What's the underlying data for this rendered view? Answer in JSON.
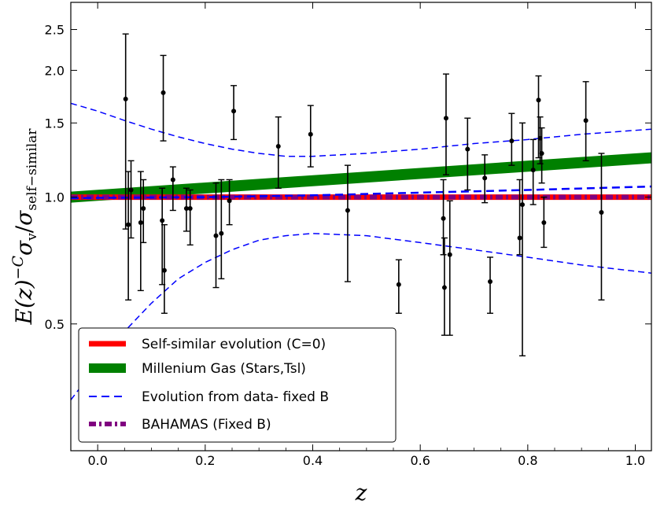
{
  "chart_data": {
    "type": "scatter",
    "title": "",
    "xlabel": "z",
    "ylabel": "E(z)^{-C} σ_v / σ_self-similar",
    "ylabel_parts": {
      "main": "E(z)",
      "exponent": "−C",
      "sigma1": "σ",
      "sub1": "v",
      "slash": "/",
      "sigma2": "σ",
      "sub2": "self−similar"
    },
    "xlim": [
      -0.05,
      1.03
    ],
    "ylim": [
      0.25,
      2.9
    ],
    "yscale": "log",
    "xticks": [
      0.0,
      0.2,
      0.4,
      0.6,
      0.8,
      1.0
    ],
    "xtick_labels": [
      "0.0",
      "0.2",
      "0.4",
      "0.6",
      "0.8",
      "1.0"
    ],
    "yticks": [
      0.5,
      1.0,
      1.5,
      2.0,
      2.5
    ],
    "ytick_labels": [
      "0.5",
      "1.0",
      "1.5",
      "2.0",
      "2.5"
    ],
    "grid": false,
    "legend_position": "lower-left",
    "legend": [
      {
        "label": "Self-similar evolution (C=0)",
        "color": "#ff0000",
        "style": "solid-thick"
      },
      {
        "label": "Millenium Gas (Stars,Tsl)",
        "color": "#008000",
        "style": "solid-thicker"
      },
      {
        "label": "Evolution from data- fixed B",
        "color": "#0000ff",
        "style": "dashed"
      },
      {
        "label": "BAHAMAS (Fixed B)",
        "color": "#800080",
        "style": "dash-dot-thick"
      }
    ],
    "series": [
      {
        "name": "Self-similar evolution (C=0)",
        "kind": "line",
        "color": "#ff0000",
        "x": [
          -0.05,
          1.03
        ],
        "y": [
          1.0,
          1.0
        ]
      },
      {
        "name": "Millenium Gas (Stars,Tsl)",
        "kind": "line",
        "color": "#008000",
        "x": [
          -0.05,
          1.03
        ],
        "y": [
          1.0,
          1.24
        ]
      },
      {
        "name": "Evolution from data- fixed B (central)",
        "kind": "line",
        "color": "#0000ff",
        "x": [
          -0.05,
          0.2,
          0.4,
          0.6,
          0.8,
          1.03
        ],
        "y": [
          0.995,
          1.0,
          1.01,
          1.025,
          1.04,
          1.06
        ]
      },
      {
        "name": "Evolution from data- fixed B (upper bound)",
        "kind": "line",
        "color": "#0000ff",
        "x": [
          -0.05,
          0.0,
          0.05,
          0.1,
          0.15,
          0.2,
          0.25,
          0.3,
          0.35,
          0.4,
          0.5,
          0.6,
          0.7,
          0.8,
          0.9,
          1.03
        ],
        "y": [
          1.67,
          1.6,
          1.52,
          1.45,
          1.39,
          1.34,
          1.3,
          1.27,
          1.25,
          1.25,
          1.27,
          1.3,
          1.34,
          1.37,
          1.41,
          1.45
        ]
      },
      {
        "name": "Evolution from data- fixed B (lower bound)",
        "kind": "line",
        "color": "#0000ff",
        "x": [
          -0.05,
          0.0,
          0.05,
          0.1,
          0.15,
          0.2,
          0.25,
          0.3,
          0.35,
          0.4,
          0.5,
          0.6,
          0.7,
          0.8,
          0.9,
          1.03
        ],
        "y": [
          0.33,
          0.4,
          0.48,
          0.56,
          0.64,
          0.7,
          0.75,
          0.79,
          0.81,
          0.82,
          0.81,
          0.78,
          0.75,
          0.72,
          0.69,
          0.66
        ]
      },
      {
        "name": "BAHAMAS (Fixed B)",
        "kind": "line",
        "color": "#800080",
        "x": [
          -0.05,
          0.2,
          0.4,
          0.6,
          0.8,
          1.03
        ],
        "y": [
          1.0,
          1.0,
          1.0,
          1.0,
          1.0,
          1.0
        ]
      }
    ],
    "points": [
      {
        "x": 0.052,
        "y": 1.71,
        "ylo": 0.84,
        "yhi": 2.44
      },
      {
        "x": 0.057,
        "y": 0.86,
        "ylo": 0.57,
        "yhi": 1.15
      },
      {
        "x": 0.062,
        "y": 1.04,
        "ylo": 0.8,
        "yhi": 1.22
      },
      {
        "x": 0.08,
        "y": 0.87,
        "ylo": 0.6,
        "yhi": 1.15
      },
      {
        "x": 0.085,
        "y": 0.94,
        "ylo": 0.78,
        "yhi": 1.1
      },
      {
        "x": 0.12,
        "y": 0.88,
        "ylo": 0.62,
        "yhi": 1.05
      },
      {
        "x": 0.122,
        "y": 1.77,
        "ylo": 1.36,
        "yhi": 2.17
      },
      {
        "x": 0.124,
        "y": 0.67,
        "ylo": 0.53,
        "yhi": 0.86
      },
      {
        "x": 0.14,
        "y": 1.1,
        "ylo": 0.93,
        "yhi": 1.18
      },
      {
        "x": 0.165,
        "y": 0.94,
        "ylo": 0.83,
        "yhi": 1.05
      },
      {
        "x": 0.172,
        "y": 0.94,
        "ylo": 0.77,
        "yhi": 1.04
      },
      {
        "x": 0.22,
        "y": 0.81,
        "ylo": 0.61,
        "yhi": 1.08
      },
      {
        "x": 0.23,
        "y": 0.82,
        "ylo": 0.64,
        "yhi": 1.1
      },
      {
        "x": 0.245,
        "y": 0.98,
        "ylo": 0.86,
        "yhi": 1.1
      },
      {
        "x": 0.253,
        "y": 1.6,
        "ylo": 1.37,
        "yhi": 1.84
      },
      {
        "x": 0.336,
        "y": 1.32,
        "ylo": 1.05,
        "yhi": 1.55
      },
      {
        "x": 0.396,
        "y": 1.41,
        "ylo": 1.18,
        "yhi": 1.65
      },
      {
        "x": 0.465,
        "y": 0.93,
        "ylo": 0.63,
        "yhi": 1.19
      },
      {
        "x": 0.56,
        "y": 0.62,
        "ylo": 0.53,
        "yhi": 0.71
      },
      {
        "x": 0.643,
        "y": 0.89,
        "ylo": 0.73,
        "yhi": 1.1
      },
      {
        "x": 0.645,
        "y": 0.61,
        "ylo": 0.47,
        "yhi": 0.8
      },
      {
        "x": 0.648,
        "y": 1.54,
        "ylo": 1.13,
        "yhi": 1.96
      },
      {
        "x": 0.655,
        "y": 0.73,
        "ylo": 0.47,
        "yhi": 0.98
      },
      {
        "x": 0.688,
        "y": 1.3,
        "ylo": 1.04,
        "yhi": 1.54
      },
      {
        "x": 0.72,
        "y": 1.11,
        "ylo": 0.97,
        "yhi": 1.26
      },
      {
        "x": 0.73,
        "y": 0.63,
        "ylo": 0.53,
        "yhi": 0.72
      },
      {
        "x": 0.77,
        "y": 1.36,
        "ylo": 1.19,
        "yhi": 1.58
      },
      {
        "x": 0.785,
        "y": 0.8,
        "ylo": 0.73,
        "yhi": 1.1
      },
      {
        "x": 0.79,
        "y": 0.96,
        "ylo": 0.42,
        "yhi": 1.5
      },
      {
        "x": 0.81,
        "y": 1.16,
        "ylo": 0.96,
        "yhi": 1.37
      },
      {
        "x": 0.82,
        "y": 1.7,
        "ylo": 1.24,
        "yhi": 1.94
      },
      {
        "x": 0.823,
        "y": 1.38,
        "ylo": 1.2,
        "yhi": 1.55
      },
      {
        "x": 0.826,
        "y": 1.27,
        "ylo": 1.08,
        "yhi": 1.46
      },
      {
        "x": 0.83,
        "y": 0.87,
        "ylo": 0.76,
        "yhi": 1.0
      },
      {
        "x": 0.908,
        "y": 1.52,
        "ylo": 1.22,
        "yhi": 1.88
      },
      {
        "x": 0.937,
        "y": 0.92,
        "ylo": 0.57,
        "yhi": 1.27
      }
    ]
  }
}
